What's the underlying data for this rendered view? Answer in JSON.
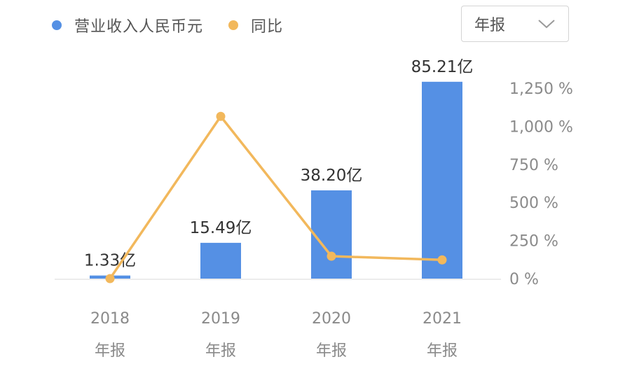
{
  "legend": {
    "revenue_label": "营业收入人民币元",
    "yoy_label": "同比",
    "revenue_color": "#5590e4",
    "yoy_color": "#f2b85c"
  },
  "period_select": {
    "value": "年报",
    "icon": "chevron-down-icon"
  },
  "chart_data": {
    "type": "bar",
    "categories": [
      "2018",
      "2019",
      "2020",
      "2021"
    ],
    "category_sublabels": [
      "年报",
      "年报",
      "年报",
      "年报"
    ],
    "series": [
      {
        "name": "营业收入人民币元",
        "type": "bar",
        "values": [
          1.33,
          15.49,
          38.2,
          85.21
        ],
        "value_labels": [
          "1.33亿",
          "15.49亿",
          "38.20亿",
          "85.21亿"
        ],
        "color": "#5590e4"
      },
      {
        "name": "同比",
        "type": "line",
        "values": [
          0,
          1065,
          147,
          123
        ],
        "unit": "%",
        "color": "#f2b85c"
      }
    ],
    "bar_axis_range": [
      0,
      100
    ],
    "y2": {
      "range": [
        0,
        1250
      ],
      "ticks": [
        0,
        250,
        500,
        750,
        1000,
        1250
      ],
      "tick_labels": [
        "0 %",
        "250 %",
        "500 %",
        "750 %",
        "1,000 %",
        "1,250 %"
      ]
    },
    "legend_position": "top-left",
    "grid": false
  }
}
